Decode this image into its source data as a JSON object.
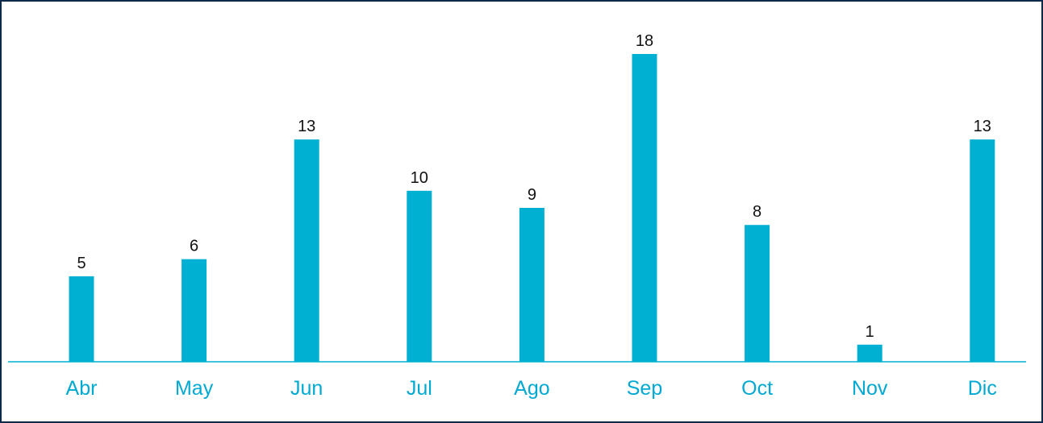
{
  "chart_data": {
    "type": "bar",
    "categories": [
      "Abr",
      "May",
      "Jun",
      "Jul",
      "Ago",
      "Sep",
      "Oct",
      "Nov",
      "Dic"
    ],
    "values": [
      5,
      6,
      13,
      10,
      9,
      18,
      8,
      1,
      13
    ],
    "color": "#00b0d3"
  }
}
